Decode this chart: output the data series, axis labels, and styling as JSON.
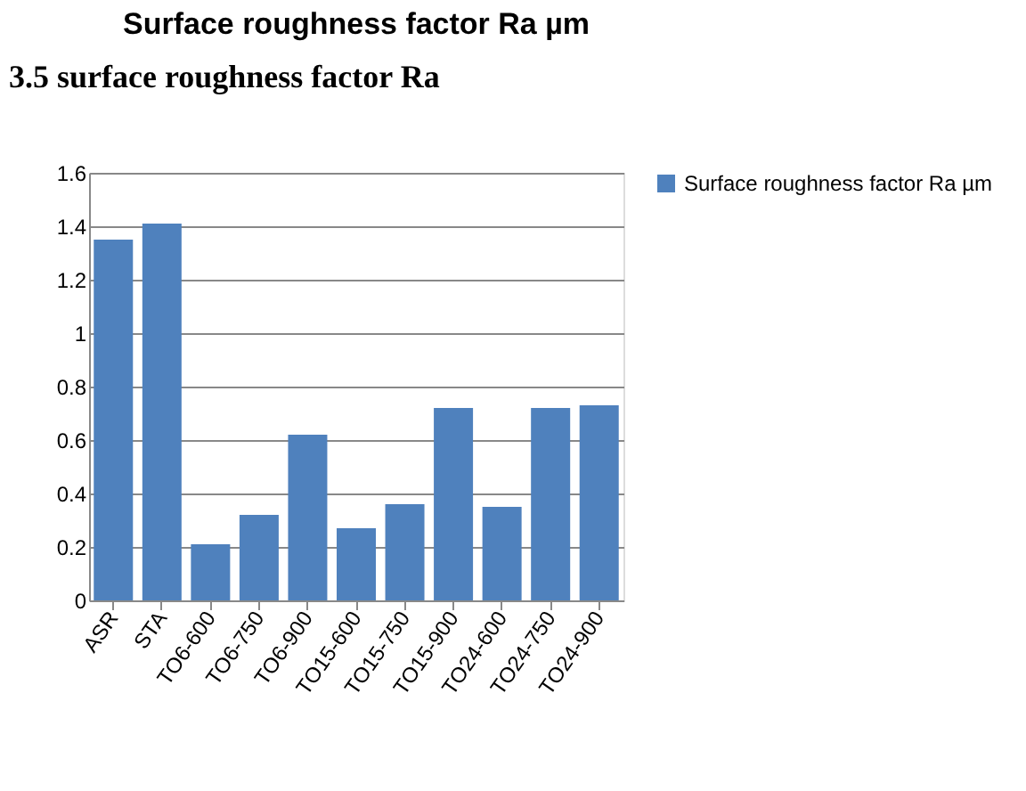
{
  "chart_data": {
    "type": "bar",
    "title": "Surface roughness factor Ra µm",
    "annotations": [
      "3.5 surface roughness factor Ra"
    ],
    "categories": [
      "ASR",
      "STA",
      "TO6-600",
      "TO6-750",
      "TO6-900",
      "TO15-600",
      "TO15-750",
      "TO15-900",
      "TO24-600",
      "TO24-750",
      "TO24-900"
    ],
    "series": [
      {
        "name": "Surface roughness factor Ra µm",
        "color": "#4f81bd",
        "values": [
          1.35,
          1.41,
          0.21,
          0.32,
          0.62,
          0.27,
          0.36,
          0.72,
          0.35,
          0.72,
          0.73
        ]
      }
    ],
    "ylim": [
      0,
      1.6
    ],
    "yticks": [
      0,
      0.2,
      0.4,
      0.6,
      0.8,
      1,
      1.2,
      1.4,
      1.6
    ],
    "grid": "y",
    "legend": "right"
  }
}
